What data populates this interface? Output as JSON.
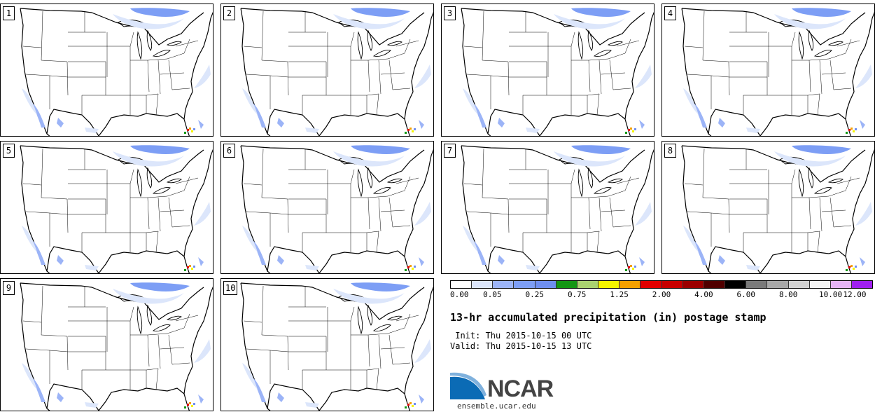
{
  "panels": [
    {
      "label": "1"
    },
    {
      "label": "2"
    },
    {
      "label": "3"
    },
    {
      "label": "4"
    },
    {
      "label": "5"
    },
    {
      "label": "6"
    },
    {
      "label": "7"
    },
    {
      "label": "8"
    },
    {
      "label": "9"
    },
    {
      "label": "10"
    }
  ],
  "colorbar": {
    "colors": [
      "#ffffff",
      "#dce6fb",
      "#9cb4f7",
      "#7d9ef5",
      "#6f8ff0",
      "#149614",
      "#aad270",
      "#f5f500",
      "#f5a000",
      "#e10000",
      "#c80000",
      "#9b0000",
      "#500000",
      "#000000",
      "#7a7a7a",
      "#a8a8a8",
      "#d2d2d2",
      "#f5f5f5",
      "#e6b4f5",
      "#a020f0"
    ],
    "tick_labels": [
      "0.00",
      "0.05",
      "0.25",
      "0.75",
      "1.25",
      "2.00",
      "4.00",
      "6.00",
      "8.00",
      "10.00",
      "12.00"
    ]
  },
  "title": "13-hr accumulated precipitation (in) postage stamp",
  "init_line": " Init: Thu 2015-10-15 00 UTC",
  "valid_line": "Valid: Thu 2015-10-15 13 UTC",
  "logo": {
    "text": "NCAR",
    "website": "ensemble.ucar.edu"
  }
}
